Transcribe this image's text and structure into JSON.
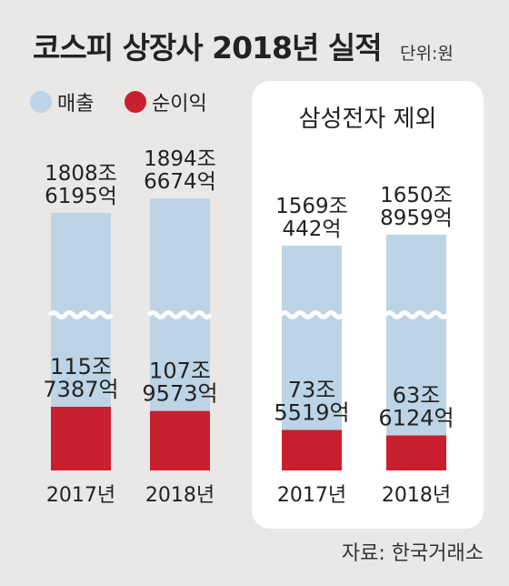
{
  "title": "코스피 상장사 2018년 실적",
  "unit": "단위:원",
  "legend": [
    {
      "label": "매출",
      "color": "#bcd4e6"
    },
    {
      "label": "순이익",
      "color": "#c8202f"
    }
  ],
  "source": "자료: 한국거래소",
  "chart_data": [
    {
      "type": "bar",
      "title": "",
      "categories": [
        "2017년",
        "2018년"
      ],
      "series": [
        {
          "name": "매출",
          "values": [
            18086195,
            18946674
          ],
          "value_labels": [
            [
              "1808조",
              "6195억"
            ],
            [
              "1894조",
              "6674억"
            ]
          ]
        },
        {
          "name": "순이익",
          "values": [
            1157387,
            1079573
          ],
          "value_labels": [
            [
              "115조",
              "7387억"
            ],
            [
              "107조",
              "9573억"
            ]
          ]
        }
      ],
      "value_unit": "억원",
      "axis_break": true
    },
    {
      "type": "bar",
      "title": "삼성전자 제외",
      "categories": [
        "2017년",
        "2018년"
      ],
      "series": [
        {
          "name": "매출",
          "values": [
            15690442,
            16508959
          ],
          "value_labels": [
            [
              "1569조",
              "442억"
            ],
            [
              "1650조",
              "8959억"
            ]
          ]
        },
        {
          "name": "순이익",
          "values": [
            735519,
            636124
          ],
          "value_labels": [
            [
              "73조",
              "5519억"
            ],
            [
              "63조",
              "6124억"
            ]
          ]
        }
      ],
      "value_unit": "억원",
      "axis_break": true
    }
  ]
}
